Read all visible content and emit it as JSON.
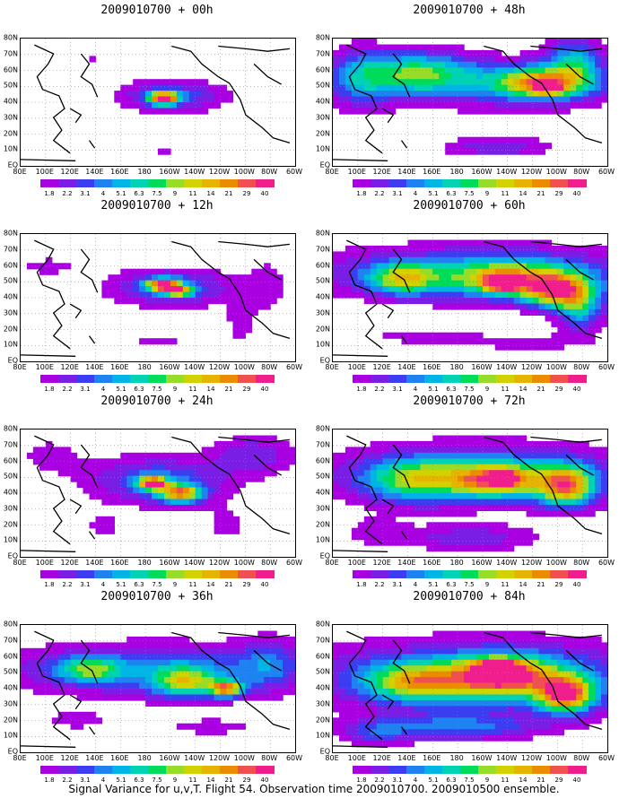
{
  "figure": {
    "caption": "Signal Variance for u,v,T. Flight 54. Observation time 2009010700. 2009010500 ensemble.",
    "lat_labels": [
      "EQ",
      "10N",
      "20N",
      "30N",
      "40N",
      "50N",
      "60N",
      "70N",
      "80N"
    ],
    "lon_labels": [
      "80E",
      "100E",
      "120E",
      "140E",
      "160E",
      "180",
      "160W",
      "140W",
      "120W",
      "100W",
      "80W",
      "60W"
    ],
    "colorbar": {
      "levels": [
        "1.8",
        "2.2",
        "3.1",
        "4",
        "5.1",
        "6.3",
        "7.5",
        "9",
        "11",
        "14",
        "21",
        "29",
        "40"
      ],
      "colors": [
        "#a800e0",
        "#7a1ee6",
        "#3c3cf0",
        "#1e82f0",
        "#00b4e6",
        "#00d2b4",
        "#00dc5a",
        "#96dc28",
        "#d2d200",
        "#e6b400",
        "#eb8c00",
        "#f05050",
        "#f01e8c"
      ]
    }
  },
  "panels": [
    {
      "title": "2009010700 + 00h"
    },
    {
      "title": "2009010700 + 48h"
    },
    {
      "title": "2009010700 + 12h"
    },
    {
      "title": "2009010700 + 60h"
    },
    {
      "title": "2009010700 + 24h"
    },
    {
      "title": "2009010700 + 72h"
    },
    {
      "title": "2009010700 + 36h"
    },
    {
      "title": "2009010700 + 84h"
    }
  ]
}
